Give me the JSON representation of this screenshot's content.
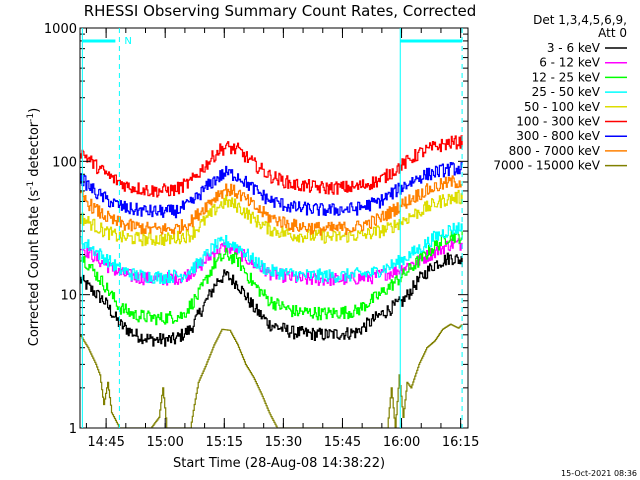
{
  "chart_data": {
    "type": "line",
    "title": "RHESSI Observing Summary Count Rates, Corrected",
    "xlabel": "Start Time (28-Aug-08 14:38:22)",
    "ylabel_parts": [
      "Corrected Count Rate (s",
      "-1",
      " detector",
      "-1",
      ")"
    ],
    "y_scale": "log",
    "ylim": [
      1,
      1000
    ],
    "y_ticks": [
      {
        "value": 1,
        "label": "1"
      },
      {
        "value": 10,
        "label": "10"
      },
      {
        "value": 100,
        "label": "100"
      },
      {
        "value": 1000,
        "label": "1000"
      }
    ],
    "x_unit": "minutes after 14:38:22",
    "xlim": [
      0,
      98.5
    ],
    "x_ticks": [
      {
        "value": 6.63,
        "label": "14:45"
      },
      {
        "value": 21.63,
        "label": "15:00"
      },
      {
        "value": 36.63,
        "label": "15:15"
      },
      {
        "value": 51.63,
        "label": "15:30"
      },
      {
        "value": 66.63,
        "label": "15:45"
      },
      {
        "value": 81.63,
        "label": "16:00"
      },
      {
        "value": 96.63,
        "label": "16:15"
      }
    ],
    "legend_header": [
      "Det 1,3,4,5,6,9,",
      "Att 0"
    ],
    "legend_position": "right",
    "series": [
      {
        "name": "3 - 6 keV",
        "color": "#000000",
        "points": [
          [
            0,
            13
          ],
          [
            6,
            9
          ],
          [
            10,
            6
          ],
          [
            14,
            5
          ],
          [
            18,
            4.6
          ],
          [
            24,
            4.6
          ],
          [
            28,
            5.5
          ],
          [
            32,
            9
          ],
          [
            35,
            13
          ],
          [
            37,
            14
          ],
          [
            40,
            12
          ],
          [
            44,
            8
          ],
          [
            48,
            6
          ],
          [
            54,
            5.2
          ],
          [
            62,
            5
          ],
          [
            70,
            5.2
          ],
          [
            76,
            7
          ],
          [
            82,
            9
          ],
          [
            86,
            13
          ],
          [
            90,
            17
          ],
          [
            94,
            19
          ],
          [
            97,
            18
          ]
        ]
      },
      {
        "name": "6 - 12 keV",
        "color": "#ff00ff",
        "points": [
          [
            0,
            23
          ],
          [
            6,
            17
          ],
          [
            10,
            14.5
          ],
          [
            14,
            13.5
          ],
          [
            20,
            13
          ],
          [
            26,
            13.5
          ],
          [
            30,
            16
          ],
          [
            34,
            21
          ],
          [
            37,
            23
          ],
          [
            40,
            21
          ],
          [
            44,
            17
          ],
          [
            48,
            14.5
          ],
          [
            56,
            13
          ],
          [
            66,
            13
          ],
          [
            74,
            13.5
          ],
          [
            80,
            15
          ],
          [
            86,
            18
          ],
          [
            90,
            21
          ],
          [
            94,
            24
          ],
          [
            97,
            24
          ]
        ]
      },
      {
        "name": "12 - 25 keV",
        "color": "#00ff00",
        "points": [
          [
            0,
            20
          ],
          [
            6,
            12
          ],
          [
            10,
            8
          ],
          [
            14,
            7
          ],
          [
            20,
            6.6
          ],
          [
            26,
            7
          ],
          [
            30,
            10
          ],
          [
            34,
            17
          ],
          [
            37,
            20
          ],
          [
            40,
            18
          ],
          [
            44,
            12
          ],
          [
            48,
            9
          ],
          [
            54,
            7.5
          ],
          [
            62,
            7.2
          ],
          [
            70,
            7.5
          ],
          [
            76,
            10
          ],
          [
            82,
            14
          ],
          [
            86,
            18
          ],
          [
            90,
            23
          ],
          [
            94,
            28
          ],
          [
            97,
            27
          ]
        ]
      },
      {
        "name": "25 - 50 keV",
        "color": "#00ffff",
        "points": [
          [
            0,
            26
          ],
          [
            6,
            19
          ],
          [
            10,
            15.5
          ],
          [
            14,
            14
          ],
          [
            20,
            13.5
          ],
          [
            26,
            14
          ],
          [
            30,
            17
          ],
          [
            34,
            23
          ],
          [
            37,
            25
          ],
          [
            40,
            23
          ],
          [
            44,
            18
          ],
          [
            48,
            15
          ],
          [
            56,
            14
          ],
          [
            66,
            13.8
          ],
          [
            74,
            14.5
          ],
          [
            80,
            17
          ],
          [
            86,
            22
          ],
          [
            90,
            27
          ],
          [
            94,
            31
          ],
          [
            97,
            32
          ]
        ]
      },
      {
        "name": "50 - 100 keV",
        "color": "#dddd00",
        "points": [
          [
            0,
            38
          ],
          [
            6,
            30
          ],
          [
            10,
            27
          ],
          [
            16,
            26
          ],
          [
            22,
            26
          ],
          [
            28,
            28
          ],
          [
            32,
            37
          ],
          [
            35,
            46
          ],
          [
            37,
            50
          ],
          [
            40,
            46
          ],
          [
            44,
            37
          ],
          [
            48,
            31
          ],
          [
            54,
            28
          ],
          [
            64,
            27
          ],
          [
            72,
            28
          ],
          [
            78,
            31
          ],
          [
            84,
            39
          ],
          [
            88,
            45
          ],
          [
            92,
            51
          ],
          [
            96,
            54
          ],
          [
            97,
            52
          ]
        ]
      },
      {
        "name": "100 - 300 keV",
        "color": "#ff0000",
        "points": [
          [
            0,
            120
          ],
          [
            4,
            92
          ],
          [
            8,
            75
          ],
          [
            12,
            65
          ],
          [
            18,
            60
          ],
          [
            24,
            61
          ],
          [
            28,
            70
          ],
          [
            32,
            95
          ],
          [
            35,
            120
          ],
          [
            37,
            128
          ],
          [
            40,
            122
          ],
          [
            44,
            96
          ],
          [
            48,
            78
          ],
          [
            54,
            67
          ],
          [
            62,
            63
          ],
          [
            70,
            64
          ],
          [
            76,
            72
          ],
          [
            82,
            95
          ],
          [
            86,
            115
          ],
          [
            90,
            128
          ],
          [
            94,
            138
          ],
          [
            97,
            140
          ]
        ]
      },
      {
        "name": "300 - 800 keV",
        "color": "#0000ff",
        "points": [
          [
            0,
            75
          ],
          [
            4,
            58
          ],
          [
            8,
            49
          ],
          [
            12,
            44
          ],
          [
            18,
            42
          ],
          [
            24,
            42
          ],
          [
            28,
            48
          ],
          [
            32,
            64
          ],
          [
            35,
            76
          ],
          [
            37,
            82
          ],
          [
            40,
            78
          ],
          [
            44,
            62
          ],
          [
            48,
            51
          ],
          [
            54,
            45
          ],
          [
            62,
            43
          ],
          [
            70,
            44
          ],
          [
            76,
            50
          ],
          [
            82,
            65
          ],
          [
            86,
            76
          ],
          [
            90,
            83
          ],
          [
            94,
            88
          ],
          [
            97,
            88
          ]
        ]
      },
      {
        "name": "800 - 7000 keV",
        "color": "#ff8000",
        "points": [
          [
            0,
            55
          ],
          [
            4,
            43
          ],
          [
            8,
            36
          ],
          [
            12,
            33
          ],
          [
            18,
            31
          ],
          [
            24,
            31
          ],
          [
            28,
            35
          ],
          [
            32,
            47
          ],
          [
            35,
            57
          ],
          [
            37,
            62
          ],
          [
            40,
            58
          ],
          [
            44,
            46
          ],
          [
            48,
            38
          ],
          [
            54,
            33
          ],
          [
            62,
            31
          ],
          [
            70,
            32
          ],
          [
            76,
            37
          ],
          [
            82,
            48
          ],
          [
            86,
            57
          ],
          [
            90,
            64
          ],
          [
            94,
            70
          ],
          [
            97,
            70
          ]
        ]
      },
      {
        "name": "7000 - 15000 keV",
        "color": "#808000",
        "points": [
          [
            0,
            5
          ],
          [
            2,
            4
          ],
          [
            4,
            3
          ],
          [
            5,
            2.5
          ],
          [
            6,
            1.5
          ],
          [
            7,
            2.2
          ],
          [
            8,
            1.3
          ],
          [
            10,
            1
          ],
          [
            18,
            1
          ],
          [
            20,
            1.2
          ],
          [
            21,
            2
          ],
          [
            22,
            1
          ],
          [
            28,
            1
          ],
          [
            29,
            1.5
          ],
          [
            30,
            2.2
          ],
          [
            32,
            3
          ],
          [
            34,
            4.2
          ],
          [
            36,
            5.5
          ],
          [
            38,
            5.4
          ],
          [
            40,
            4.2
          ],
          [
            42,
            3
          ],
          [
            44,
            2.4
          ],
          [
            46,
            1.8
          ],
          [
            48,
            1.3
          ],
          [
            50,
            1
          ],
          [
            78,
            1
          ],
          [
            79,
            2
          ],
          [
            80,
            1
          ],
          [
            81,
            2.5
          ],
          [
            82,
            1.2
          ],
          [
            83,
            2.2
          ],
          [
            84,
            2
          ],
          [
            86,
            3
          ],
          [
            88,
            4
          ],
          [
            90,
            4.5
          ],
          [
            92,
            5.5
          ],
          [
            94,
            6
          ],
          [
            96,
            5.6
          ],
          [
            97,
            6
          ]
        ]
      }
    ]
  },
  "annotations": {
    "n_marker": "N",
    "timestamp": "15-Oct-2021 08:36"
  }
}
